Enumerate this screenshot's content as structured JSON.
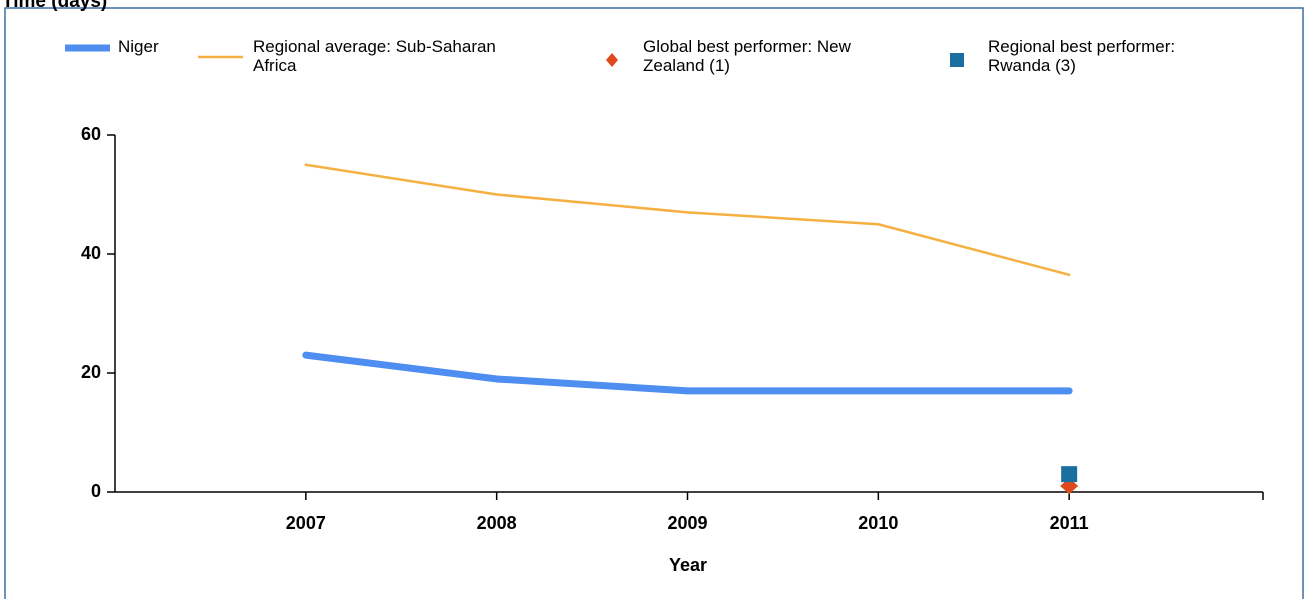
{
  "chart_data": {
    "type": "line",
    "title": "Time (days)",
    "x_label": "Year",
    "x": [
      2007,
      2008,
      2009,
      2010,
      2011
    ],
    "xlim": [
      2006,
      2012
    ],
    "xticks": [
      2007,
      2008,
      2009,
      2010,
      2011
    ],
    "ylim": [
      0,
      60
    ],
    "yticks": [
      0,
      20,
      40,
      60
    ],
    "series": [
      {
        "name": "Niger",
        "color": "#4e8ef0",
        "marker": "line-thick",
        "values": [
          23,
          19,
          17,
          17,
          17
        ]
      },
      {
        "name": "Regional average: Sub-Saharan Africa",
        "color": "#f5b041",
        "marker": "line",
        "values": [
          55,
          50,
          47,
          45,
          36.5
        ]
      },
      {
        "name": "Global best performer: New Zealand (1)",
        "color": "#e0491b",
        "marker": "diamond",
        "values": [
          null,
          null,
          null,
          null,
          1
        ]
      },
      {
        "name": "Regional best performer: Rwanda (3)",
        "color": "#1b6fa0",
        "marker": "square",
        "values": [
          null,
          null,
          null,
          null,
          3
        ]
      }
    ]
  }
}
